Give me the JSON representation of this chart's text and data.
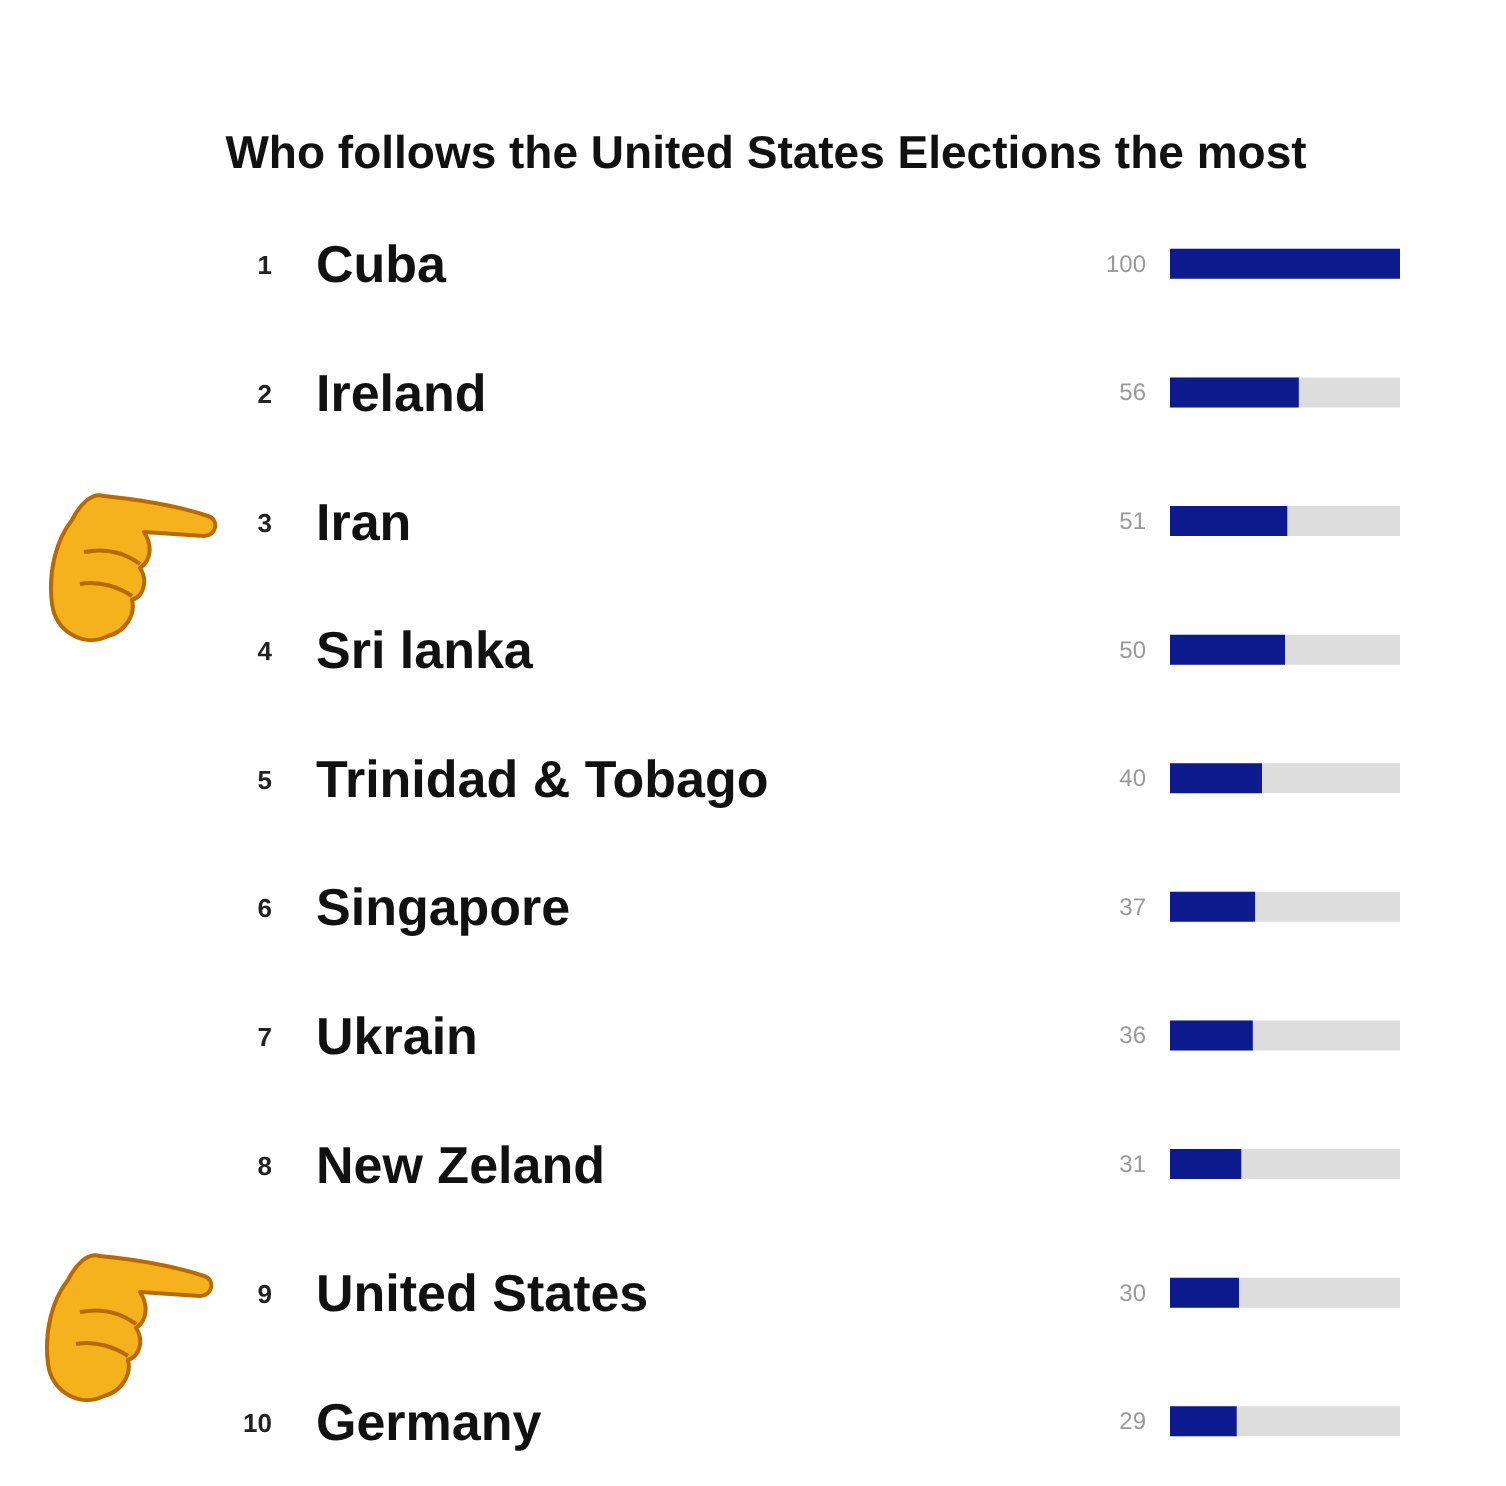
{
  "chart_data": {
    "type": "bar",
    "orientation": "horizontal",
    "title": "Who follows the United States Elections the most",
    "categories": [
      "1 Cuba",
      "2 Ireland",
      "3 Iran",
      "4 Sri lanka",
      "5 Trinidad & Tobago",
      "6 Singapore",
      "7 Ukrain",
      "8 New Zeland",
      "9 United States",
      "10 Germany"
    ],
    "values": [
      100,
      56,
      51,
      50,
      40,
      37,
      36,
      31,
      30,
      29
    ],
    "color": "#0d1b8f",
    "xlim": [
      0,
      100
    ],
    "tick_labels": "y",
    "data_labels": true
  }
}
